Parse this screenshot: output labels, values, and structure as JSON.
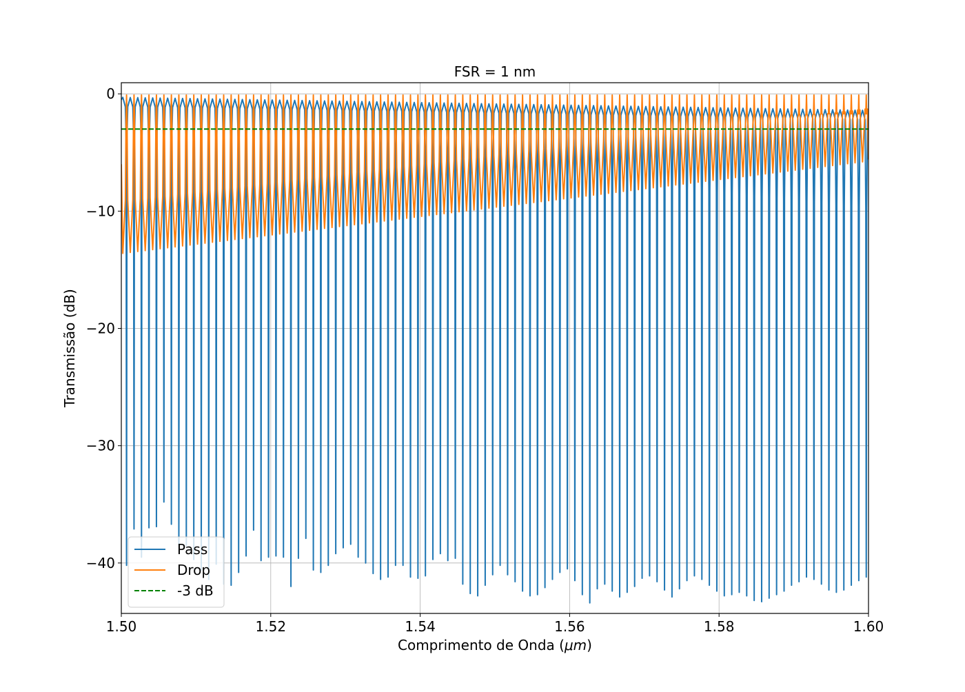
{
  "colors": {
    "pass": "#1f77b4",
    "drop": "#ff7f0e",
    "ref": "#008000",
    "grid": "#b0b0b0",
    "axes": "#000000",
    "legend_border": "#cccccc"
  },
  "chart_data": {
    "type": "line",
    "title": "FSR = 1 nm",
    "xlabel_prefix": "Comprimento de Onda (",
    "xlabel_unit": "μm",
    "xlabel_suffix": ")",
    "ylabel": "Transmissão (dB)",
    "xlim": [
      1.5,
      1.6
    ],
    "ylim": [
      -44.3,
      0.95
    ],
    "xticks": [
      1.5,
      1.52,
      1.54,
      1.56,
      1.58,
      1.6
    ],
    "xtick_labels": [
      "1.50",
      "1.52",
      "1.54",
      "1.56",
      "1.58",
      "1.60"
    ],
    "yticks": [
      0,
      -10,
      -20,
      -30,
      -40
    ],
    "ytick_labels": [
      "0",
      "−10",
      "−20",
      "−30",
      "−40"
    ],
    "grid": true,
    "legend_position": "lower left",
    "series": [
      {
        "name": "Pass",
        "color_key": "pass",
        "style": "solid",
        "description": "periodic notch response, ~100 resonances between 1.50 and 1.60 μm",
        "fsr_um": 0.001,
        "first_resonance_um": 1.5007,
        "peak_db_start": -0.3,
        "peak_db_end": -1.4,
        "notch_depth_db_range": [
          -34.8,
          -43.4
        ]
      },
      {
        "name": "Drop",
        "color_key": "drop",
        "style": "solid",
        "description": "periodic drop-port peaks at the same resonances",
        "fsr_um": 0.001,
        "first_resonance_um": 1.5007,
        "peak_db": -0.1,
        "trough_db_start": -13.6,
        "trough_db_end": -5.8
      },
      {
        "name": "-3 dB",
        "color_key": "ref",
        "style": "dashed",
        "y": -3
      }
    ],
    "pass_notch_depths_db": [
      -40.2,
      -37.1,
      -39.5,
      -37.0,
      -36.9,
      -34.8,
      -36.7,
      -38.4,
      -38.5,
      -39.7,
      -40.6,
      -41.4,
      -40.1,
      -41.8,
      -41.9,
      -40.8,
      -39.4,
      -37.2,
      -39.8,
      -39.5,
      -39.4,
      -39.5,
      -42.0,
      -39.6,
      -37.9,
      -40.6,
      -40.8,
      -40.2,
      -39.2,
      -38.7,
      -38.4,
      -39.5,
      -40.0,
      -40.9,
      -41.4,
      -41.2,
      -40.2,
      -40.2,
      -41.2,
      -41.3,
      -41.1,
      -39.7,
      -39.2,
      -39.8,
      -39.6,
      -41.8,
      -42.6,
      -42.8,
      -41.9,
      -41.0,
      -40.2,
      -41.0,
      -41.6,
      -42.4,
      -42.8,
      -42.7,
      -42.1,
      -41.4,
      -40.8,
      -40.5,
      -41.5,
      -42.7,
      -43.4,
      -42.2,
      -41.8,
      -42.4,
      -42.9,
      -42.5,
      -42.0,
      -41.3,
      -41.1,
      -41.6,
      -42.3,
      -42.9,
      -42.2,
      -41.5,
      -41.1,
      -41.4,
      -41.9,
      -42.4,
      -42.8,
      -42.7,
      -42.5,
      -42.8,
      -43.2,
      -43.3,
      -43.0,
      -42.7,
      -42.4,
      -41.9,
      -41.6,
      -41.2,
      -41.4,
      -41.8,
      -42.3,
      -42.5,
      -42.3,
      -41.9,
      -41.5,
      -41.2
    ]
  }
}
